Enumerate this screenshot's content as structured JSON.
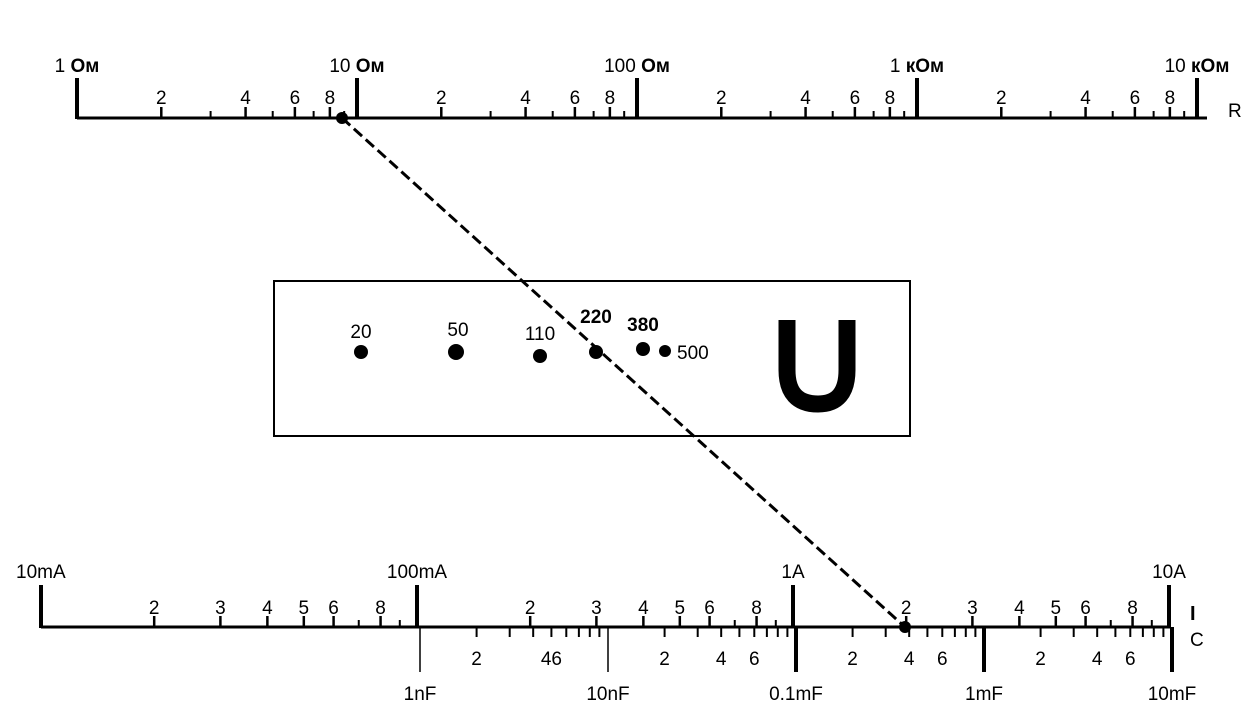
{
  "resistance_scale": {
    "axis_label": "R",
    "decade_labels": [
      {
        "prefix": "1",
        "unit": "Ом"
      },
      {
        "prefix": "10",
        "unit": "Ом"
      },
      {
        "prefix": "100",
        "unit": "Ом"
      },
      {
        "prefix": "1",
        "unit": "кОм"
      },
      {
        "prefix": "10",
        "unit": "кОм"
      }
    ],
    "minor_labels": [
      "2",
      "4",
      "6",
      "8"
    ],
    "marked_value": "8.5 Ом"
  },
  "voltage_box": {
    "symbol": "U",
    "points": [
      {
        "label": "20",
        "bold": false
      },
      {
        "label": "50",
        "bold": false
      },
      {
        "label": "110",
        "bold": false
      },
      {
        "label": "220",
        "bold": true
      },
      {
        "label": "380",
        "bold": true
      },
      {
        "label": "500",
        "bold": false
      }
    ]
  },
  "current_scale": {
    "axis_label": "I",
    "decade_labels": [
      "10mA",
      "100mA",
      "1A",
      "10A"
    ],
    "minor_labels": [
      "2",
      "3",
      "4",
      "5",
      "6",
      "8"
    ]
  },
  "capacitance_scale": {
    "axis_label": "C",
    "decade_labels": [
      "1nF",
      "10nF",
      "0.1mF",
      "1mF",
      "10mF"
    ],
    "minor_labels": [
      "2",
      "4",
      "6"
    ],
    "first_group_labels": [
      "2",
      "46"
    ]
  },
  "colors": {
    "ink": "#000000",
    "background": "#ffffff"
  }
}
